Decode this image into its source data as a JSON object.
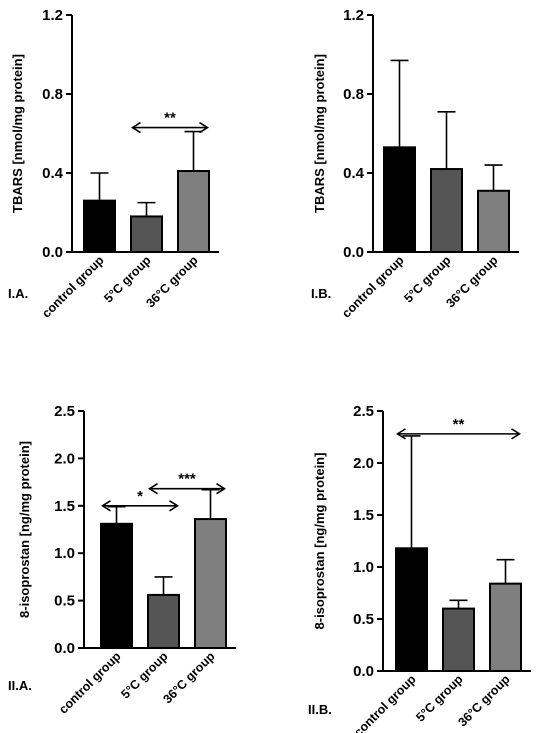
{
  "chart_data": [
    {
      "type": "bar",
      "panel_label": "I.A.",
      "ylabel": "TBARS [nmol/mg protein]",
      "ylim": [
        0,
        1.2
      ],
      "yticks": [
        "0.0",
        "0.4",
        "0.8",
        "1.2"
      ],
      "categories": [
        "control group",
        "5°C group",
        "36°C group"
      ],
      "values": [
        0.26,
        0.18,
        0.41
      ],
      "errors": [
        0.14,
        0.07,
        0.2
      ],
      "bar_colors": [
        "#000000",
        "#555555",
        "#7f7f7f"
      ],
      "significance": [
        {
          "from": 1,
          "to": 2,
          "label": "**",
          "y": 0.63
        }
      ]
    },
    {
      "type": "bar",
      "panel_label": "I.B.",
      "ylabel": "TBARS [nmol/mg protein]",
      "ylim": [
        0,
        1.2
      ],
      "yticks": [
        "0.0",
        "0.4",
        "0.8",
        "1.2"
      ],
      "categories": [
        "control group",
        "5°C group",
        "36°C group"
      ],
      "values": [
        0.53,
        0.42,
        0.31
      ],
      "errors": [
        0.44,
        0.29,
        0.13
      ],
      "bar_colors": [
        "#000000",
        "#555555",
        "#7f7f7f"
      ],
      "significance": []
    },
    {
      "type": "bar",
      "panel_label": "II.A.",
      "ylabel": "8-isoprostan [ng/mg protein]",
      "ylim": [
        0,
        2.5
      ],
      "yticks": [
        "0.0",
        "0.5",
        "1.0",
        "1.5",
        "2.0",
        "2.5"
      ],
      "categories": [
        "control group",
        "5°C group",
        "36°C group"
      ],
      "values": [
        1.31,
        0.56,
        1.36
      ],
      "errors": [
        0.18,
        0.19,
        0.31
      ],
      "bar_colors": [
        "#000000",
        "#555555",
        "#7f7f7f"
      ],
      "significance": [
        {
          "from": 0,
          "to": 1,
          "label": "*",
          "y": 1.5
        },
        {
          "from": 1,
          "to": 2,
          "label": "***",
          "y": 1.68
        }
      ]
    },
    {
      "type": "bar",
      "panel_label": "II.B.",
      "ylabel": "8-isoprostan [ng/mg protein]",
      "ylim": [
        0,
        2.5
      ],
      "yticks": [
        "0.0",
        "0.5",
        "1.0",
        "1.5",
        "2.0",
        "2.5"
      ],
      "categories": [
        "control group",
        "5°C group",
        "36°C group"
      ],
      "values": [
        1.18,
        0.6,
        0.84
      ],
      "errors": [
        1.08,
        0.08,
        0.23
      ],
      "bar_colors": [
        "#000000",
        "#555555",
        "#7f7f7f"
      ],
      "significance": [
        {
          "from": 0,
          "to": 2,
          "label": "**",
          "y": 2.28
        }
      ]
    }
  ]
}
